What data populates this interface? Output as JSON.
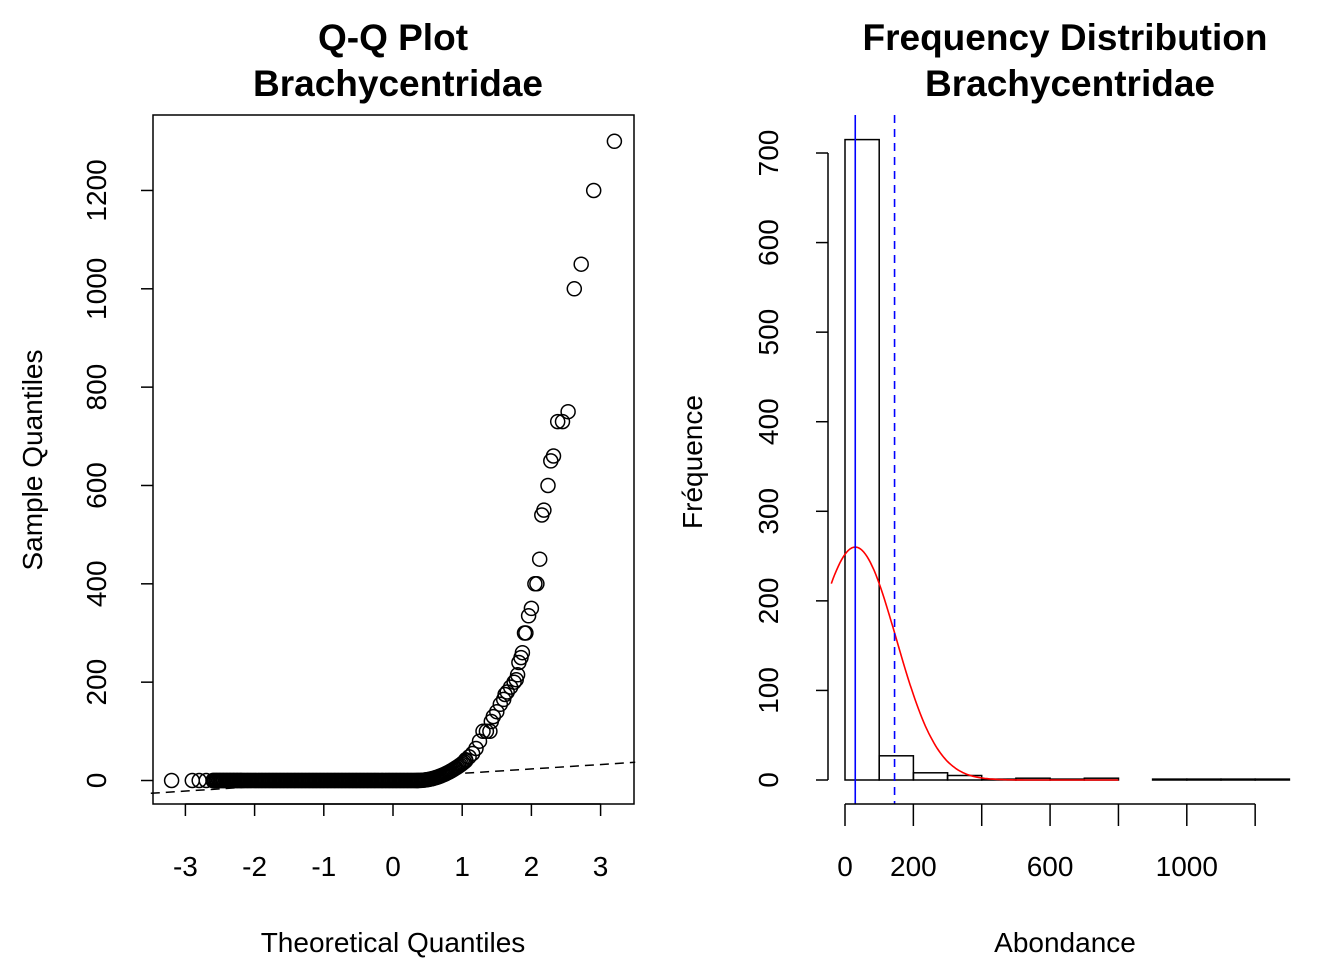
{
  "chart_data": [
    {
      "type": "scatter",
      "title": [
        "Q-Q Plot",
        "Brachycentridae"
      ],
      "xlabel": "Theoretical Quantiles",
      "ylabel": "Sample Quantiles",
      "xlim": [
        -3.5,
        3.5
      ],
      "ylim": [
        -50,
        1350
      ],
      "xticks": [
        -3,
        -2,
        -1,
        0,
        1,
        2,
        3
      ],
      "yticks": [
        0,
        200,
        400,
        600,
        800,
        1000,
        1200
      ],
      "reference_line": {
        "style": "dashed",
        "x": [
          -3.5,
          3.5
        ],
        "y": [
          -26,
          37
        ]
      },
      "points": [
        [
          -3.2,
          0
        ],
        [
          -2.9,
          0
        ],
        [
          -2.8,
          0
        ],
        [
          -2.7,
          0
        ],
        [
          -2.6,
          0
        ],
        [
          -2.55,
          0
        ],
        [
          -2.5,
          0
        ],
        [
          -2.45,
          0
        ],
        [
          -2.4,
          0
        ],
        [
          -2.35,
          0
        ],
        [
          -2.3,
          0
        ],
        [
          -2.25,
          0
        ],
        [
          -2.2,
          0
        ],
        [
          1.05,
          42
        ],
        [
          1.1,
          48
        ],
        [
          1.15,
          55
        ],
        [
          1.2,
          65
        ],
        [
          1.25,
          80
        ],
        [
          1.3,
          100
        ],
        [
          1.35,
          100
        ],
        [
          1.4,
          100
        ],
        [
          1.42,
          120
        ],
        [
          1.45,
          130
        ],
        [
          1.5,
          140
        ],
        [
          1.55,
          155
        ],
        [
          1.6,
          165
        ],
        [
          1.62,
          175
        ],
        [
          1.65,
          180
        ],
        [
          1.7,
          190
        ],
        [
          1.75,
          200
        ],
        [
          1.78,
          205
        ],
        [
          1.8,
          215
        ],
        [
          1.82,
          240
        ],
        [
          1.85,
          250
        ],
        [
          1.87,
          260
        ],
        [
          1.9,
          300
        ],
        [
          1.92,
          300
        ],
        [
          1.96,
          335
        ],
        [
          2.0,
          350
        ],
        [
          2.05,
          400
        ],
        [
          2.08,
          400
        ],
        [
          2.12,
          450
        ],
        [
          2.15,
          540
        ],
        [
          2.18,
          550
        ],
        [
          2.24,
          600
        ],
        [
          2.28,
          650
        ],
        [
          2.32,
          660
        ],
        [
          2.38,
          730
        ],
        [
          2.45,
          730
        ],
        [
          2.53,
          750
        ],
        [
          2.62,
          1000
        ],
        [
          2.72,
          1050
        ],
        [
          2.9,
          1200
        ],
        [
          3.2,
          1300
        ]
      ],
      "dense_bands": [
        {
          "x": [
            -2.6,
            0.35
          ],
          "y": [
            0,
            0
          ]
        },
        {
          "x": [
            0.35,
            1.05
          ],
          "y": [
            0,
            40
          ]
        }
      ]
    },
    {
      "type": "bar",
      "title": [
        "Frequency Distribution",
        "Brachycentridae"
      ],
      "xlabel": "Abondance",
      "ylabel": "Fréquence",
      "xticks": [
        0,
        200,
        600,
        1000
      ],
      "x_tick_marks": [
        0,
        200,
        400,
        600,
        800,
        1000,
        1200
      ],
      "yticks": [
        0,
        100,
        200,
        300,
        400,
        500,
        600,
        700
      ],
      "xlim": [
        -40,
        1300
      ],
      "ylim": [
        0,
        700
      ],
      "bin_width": 100,
      "bins": [
        {
          "start": 0,
          "count": 715
        },
        {
          "start": 100,
          "count": 27
        },
        {
          "start": 200,
          "count": 8
        },
        {
          "start": 300,
          "count": 5
        },
        {
          "start": 400,
          "count": 1
        },
        {
          "start": 500,
          "count": 2
        },
        {
          "start": 600,
          "count": 1
        },
        {
          "start": 700,
          "count": 2
        },
        {
          "start": 800,
          "count": 0
        },
        {
          "start": 900,
          "count": 1
        },
        {
          "start": 1000,
          "count": 1
        },
        {
          "start": 1100,
          "count": 1
        },
        {
          "start": 1200,
          "count": 1
        }
      ],
      "median_line": {
        "x": 30,
        "color": "#0000ff",
        "style": "solid"
      },
      "mean_line": {
        "x": 145,
        "color": "#0000ff",
        "style": "dashed"
      },
      "density_curve": {
        "color": "#ff0000",
        "type": "normal",
        "mean": 30,
        "sd": 120,
        "peak": 260,
        "x_range": [
          -40,
          800
        ]
      }
    }
  ]
}
